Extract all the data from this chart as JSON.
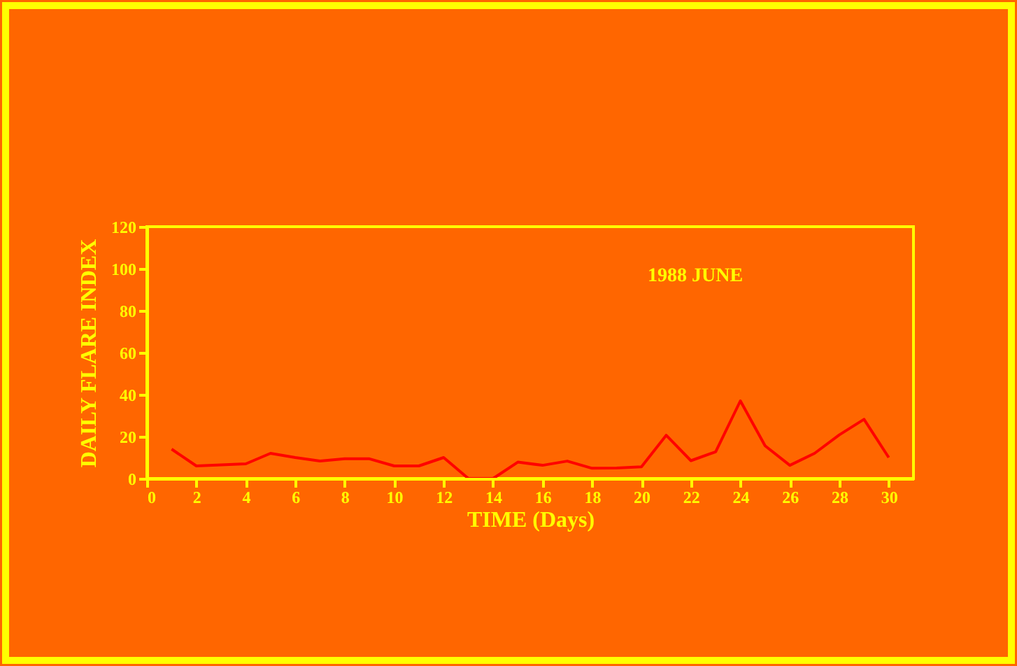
{
  "chart_data": {
    "type": "line",
    "xlabel": "TIME (Days)",
    "ylabel": "DAILY FLARE INDEX",
    "annotations": [
      "1988  JUNE"
    ],
    "x": [
      1,
      2,
      3,
      4,
      5,
      6,
      7,
      8,
      9,
      10,
      11,
      12,
      13,
      14,
      15,
      16,
      17,
      18,
      19,
      20,
      21,
      22,
      23,
      24,
      25,
      26,
      27,
      28,
      29,
      30
    ],
    "series": [
      {
        "color": "#ff0000",
        "values": [
          14,
          6,
          6.5,
          7,
          12,
          10,
          8.3,
          9.4,
          9.4,
          6,
          6,
          10,
          0,
          0,
          7.8,
          6.3,
          8.3,
          4.9,
          5,
          5.6,
          20.6,
          8.5,
          12.7,
          37,
          15.6,
          6.3,
          12,
          20.8,
          28.2,
          10
        ]
      }
    ],
    "xlim": [
      0,
      31
    ],
    "xticks": [
      0,
      2,
      4,
      6,
      8,
      10,
      12,
      14,
      16,
      18,
      20,
      22,
      24,
      26,
      28,
      30
    ],
    "ylim": [
      0,
      120
    ],
    "yticks": [
      0,
      20,
      40,
      60,
      80,
      100,
      120
    ],
    "grid": false,
    "legend": false,
    "marker": "none",
    "line_style": "solid"
  }
}
